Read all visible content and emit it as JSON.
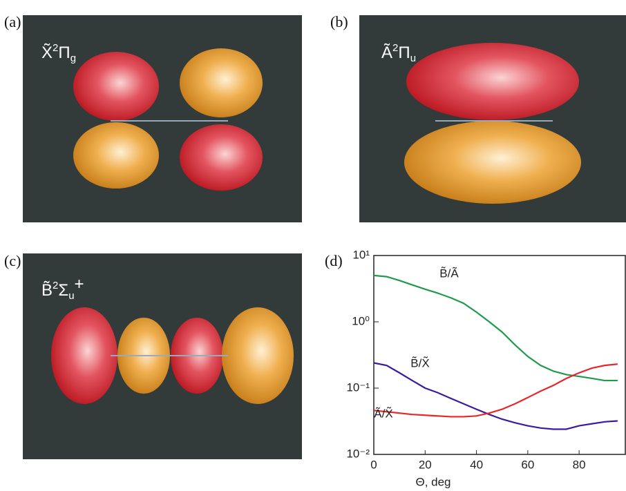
{
  "panels": [
    {
      "label": "(a)",
      "state": {
        "symbol": "X̃",
        "sup": "2",
        "term": "Π",
        "sub": "g"
      }
    },
    {
      "label": "(b)",
      "state": {
        "symbol": "Ã",
        "sup": "2",
        "term": "Π",
        "sub": "u"
      }
    },
    {
      "label": "(c)",
      "state": {
        "symbol": "B̃",
        "sup": "2",
        "term": "Σ",
        "sub": "u",
        "sup2": "+"
      }
    },
    {
      "label": "(d)"
    }
  ],
  "chart_data": {
    "type": "line",
    "x_label": "Θ, deg",
    "log_y": true,
    "x": [
      0,
      5,
      10,
      15,
      20,
      25,
      30,
      35,
      40,
      45,
      50,
      55,
      60,
      65,
      70,
      75,
      80,
      85,
      90,
      95
    ],
    "xlim": [
      0,
      98
    ],
    "xticks": [
      0,
      20,
      40,
      60,
      80
    ],
    "ylim": [
      0.01,
      10
    ],
    "yticks": [
      {
        "value": 0.01,
        "label": "10⁻²"
      },
      {
        "value": 0.1,
        "label": "10⁻¹"
      },
      {
        "value": 1,
        "label": "10⁰"
      },
      {
        "value": 10,
        "label": "10¹"
      }
    ],
    "series": [
      {
        "name": "B̃/Ã",
        "color": "#1e9a4a",
        "values": [
          5,
          4.8,
          4.2,
          3.6,
          3.1,
          2.7,
          2.3,
          1.9,
          1.4,
          1.0,
          0.7,
          0.45,
          0.3,
          0.22,
          0.18,
          0.16,
          0.15,
          0.14,
          0.13,
          0.13
        ]
      },
      {
        "name": "B̃/X̃",
        "color": "#3a1aa0",
        "values": [
          0.24,
          0.22,
          0.17,
          0.13,
          0.1,
          0.085,
          0.07,
          0.058,
          0.048,
          0.04,
          0.034,
          0.03,
          0.027,
          0.025,
          0.024,
          0.024,
          0.027,
          0.029,
          0.031,
          0.032
        ]
      },
      {
        "name": "Ã/X̃",
        "color": "#e8262a",
        "values": [
          0.046,
          0.044,
          0.042,
          0.04,
          0.039,
          0.038,
          0.037,
          0.037,
          0.038,
          0.042,
          0.048,
          0.058,
          0.072,
          0.09,
          0.11,
          0.14,
          0.17,
          0.2,
          0.22,
          0.23
        ]
      }
    ]
  }
}
